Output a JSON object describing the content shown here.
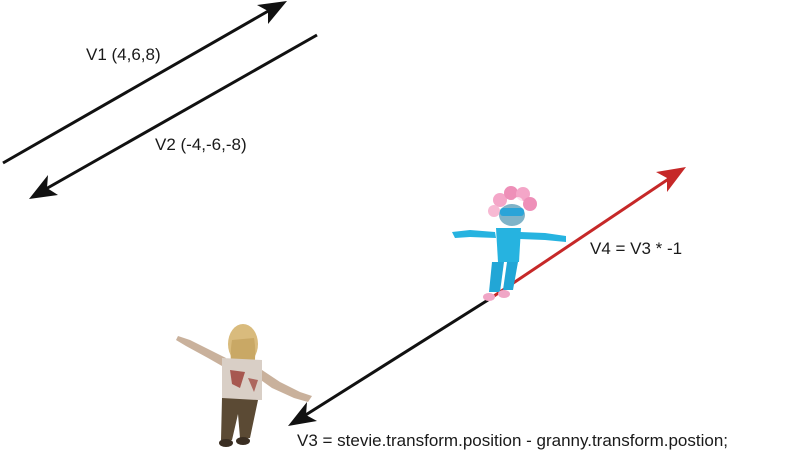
{
  "labels": {
    "v1": "V1 (4,6,8)",
    "v2": "V2 (-4,-6,-8)",
    "v3": "V3 = stevie.transform.position - granny.transform.postion;",
    "v4": "V4 = V3 * -1"
  },
  "colors": {
    "vector_black": "#111111",
    "vector_red": "#c62828",
    "background": "#ffffff"
  },
  "characters": [
    {
      "name": "stevie",
      "description": "character in blue outfit with pink curlers"
    },
    {
      "name": "granny",
      "description": "zombie woman character"
    }
  ]
}
